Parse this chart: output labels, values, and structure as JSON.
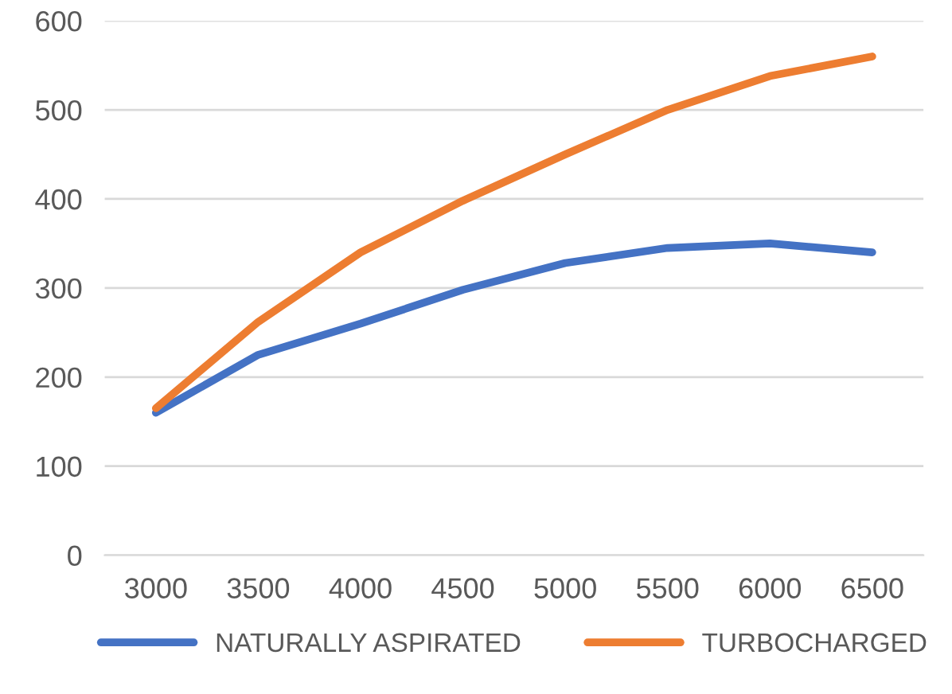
{
  "chart_data": {
    "type": "line",
    "categories": [
      "3000",
      "3500",
      "4000",
      "4500",
      "5000",
      "5500",
      "6000",
      "6500"
    ],
    "series": [
      {
        "name": "NATURALLY ASPIRATED",
        "color": "#4472c4",
        "values": [
          160,
          225,
          260,
          298,
          328,
          345,
          350,
          340
        ]
      },
      {
        "name": "TURBOCHARGED",
        "color": "#ed7d31",
        "values": [
          165,
          262,
          340,
          398,
          450,
          500,
          538,
          560
        ]
      }
    ],
    "ylim": [
      0,
      600
    ],
    "yticks": [
      0,
      100,
      200,
      300,
      400,
      500,
      600
    ],
    "grid": "y",
    "legend": "bottom",
    "marker": "none",
    "line_style": "solid"
  }
}
